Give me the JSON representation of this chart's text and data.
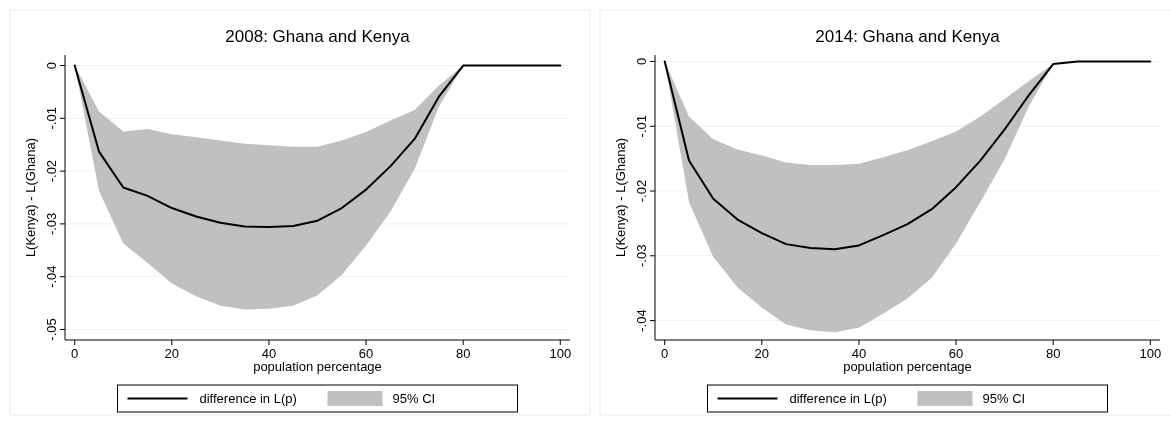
{
  "chart_data": [
    {
      "type": "line",
      "title": "2008: Ghana and Kenya",
      "xlabel": "population percentage",
      "ylabel": "L(Kenya) - L(Ghana)",
      "x": [
        0,
        5,
        10,
        15,
        20,
        25,
        30,
        35,
        40,
        45,
        50,
        55,
        60,
        65,
        70,
        75,
        80,
        85,
        90,
        95,
        100
      ],
      "xlim": [
        -2,
        102
      ],
      "xticks": [
        0,
        20,
        40,
        60,
        80,
        100
      ],
      "ylim": [
        -0.052,
        0.002
      ],
      "yticks": [
        {
          "value": 0,
          "label": "0"
        },
        {
          "value": -0.01,
          "label": "-.01"
        },
        {
          "value": -0.02,
          "label": "-.02"
        },
        {
          "value": -0.03,
          "label": "-.03"
        },
        {
          "value": -0.04,
          "label": "-.04"
        },
        {
          "value": -0.05,
          "label": "-.05"
        }
      ],
      "grid": "y",
      "legend": "bottom",
      "annotations": [
        "95% CI"
      ],
      "series": [
        {
          "name": "difference in L(p)",
          "type": "line",
          "color": "#000000",
          "values": [
            0,
            -0.0163,
            -0.0231,
            -0.0247,
            -0.027,
            -0.0286,
            -0.0298,
            -0.0305,
            -0.0306,
            -0.0304,
            -0.0294,
            -0.027,
            -0.0235,
            -0.0191,
            -0.0139,
            -0.0059,
            0,
            0,
            0,
            0,
            0
          ],
          "upper": [
            0,
            -0.0087,
            -0.0125,
            -0.012,
            -0.013,
            -0.0136,
            -0.0142,
            -0.0148,
            -0.0151,
            -0.0154,
            -0.0154,
            -0.0142,
            -0.0126,
            -0.0104,
            -0.0084,
            -0.0038,
            0,
            0,
            0,
            0,
            0
          ],
          "lower": [
            0,
            -0.0237,
            -0.0337,
            -0.0374,
            -0.0413,
            -0.0437,
            -0.0455,
            -0.0462,
            -0.0461,
            -0.0455,
            -0.0435,
            -0.0397,
            -0.0341,
            -0.0277,
            -0.0196,
            -0.0078,
            0,
            0,
            0,
            0,
            0
          ]
        }
      ]
    },
    {
      "type": "line",
      "title": "2014: Ghana and Kenya",
      "xlabel": "population percentage",
      "ylabel": "L(Kenya) - L(Ghana)",
      "x": [
        0,
        5,
        10,
        15,
        20,
        25,
        30,
        35,
        40,
        45,
        50,
        55,
        60,
        65,
        70,
        75,
        80,
        85,
        90,
        95,
        100
      ],
      "xlim": [
        -2,
        102
      ],
      "xticks": [
        0,
        20,
        40,
        60,
        80,
        100
      ],
      "ylim": [
        -0.043,
        0.001
      ],
      "yticks": [
        {
          "value": 0,
          "label": "0"
        },
        {
          "value": -0.01,
          "label": "-.01"
        },
        {
          "value": -0.02,
          "label": "-.02"
        },
        {
          "value": -0.03,
          "label": "-.03"
        },
        {
          "value": -0.04,
          "label": "-.04"
        }
      ],
      "grid": "y",
      "legend": "bottom",
      "annotations": [
        "95% CI"
      ],
      "series": [
        {
          "name": "difference in L(p)",
          "type": "line",
          "color": "#000000",
          "values": [
            0,
            -0.0153,
            -0.0212,
            -0.0244,
            -0.0265,
            -0.0282,
            -0.0288,
            -0.029,
            -0.0284,
            -0.0268,
            -0.0251,
            -0.0228,
            -0.0194,
            -0.0153,
            -0.0105,
            -0.0052,
            -0.0004,
            0,
            0,
            0,
            0
          ],
          "upper": [
            0,
            -0.0085,
            -0.012,
            -0.0136,
            -0.0145,
            -0.0156,
            -0.016,
            -0.016,
            -0.0158,
            -0.0148,
            -0.0137,
            -0.0123,
            -0.0108,
            -0.0085,
            -0.0058,
            -0.003,
            -0.0004,
            0,
            0,
            0,
            0
          ],
          "lower": [
            0,
            -0.0217,
            -0.0302,
            -0.0349,
            -0.038,
            -0.0406,
            -0.0415,
            -0.0418,
            -0.0411,
            -0.0389,
            -0.0366,
            -0.0334,
            -0.0281,
            -0.0217,
            -0.0151,
            -0.0069,
            -0.0004,
            0,
            0,
            0,
            0
          ]
        }
      ]
    }
  ]
}
